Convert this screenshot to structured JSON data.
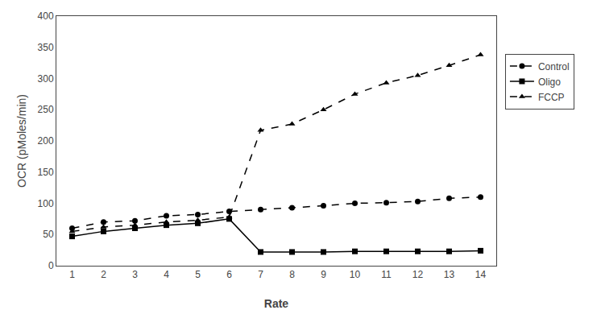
{
  "chart_data": {
    "type": "line",
    "xlabel": "Rate",
    "ylabel": "OCR (pMoles/min)",
    "x": [
      1,
      2,
      3,
      4,
      5,
      6,
      7,
      8,
      9,
      10,
      11,
      12,
      13,
      14
    ],
    "series": [
      {
        "name": "Control",
        "color": "#000000",
        "marker": "circle",
        "line_style": "dashed",
        "values": [
          60,
          70,
          72,
          80,
          82,
          87,
          90,
          93,
          96,
          100,
          101,
          103,
          108,
          110
        ]
      },
      {
        "name": "Oligo",
        "color": "#000000",
        "marker": "square",
        "line_style": "solid",
        "values": [
          47,
          55,
          60,
          65,
          68,
          75,
          22,
          22,
          22,
          23,
          23,
          23,
          23,
          24
        ]
      },
      {
        "name": "FCCP",
        "color": "#000000",
        "marker": "triangle-up",
        "line_style": "dashed",
        "values": [
          55,
          62,
          65,
          70,
          73,
          78,
          217,
          227,
          250,
          275,
          293,
          305,
          321,
          338
        ]
      }
    ],
    "xlim": [
      0.5,
      14.5
    ],
    "xticks": [
      1,
      2,
      3,
      4,
      5,
      6,
      7,
      8,
      9,
      10,
      11,
      12,
      13,
      14
    ],
    "ylim": [
      0,
      400
    ],
    "yticks": [
      0,
      50,
      100,
      150,
      200,
      250,
      300,
      350,
      400
    ],
    "grid": false,
    "legend": "right"
  }
}
